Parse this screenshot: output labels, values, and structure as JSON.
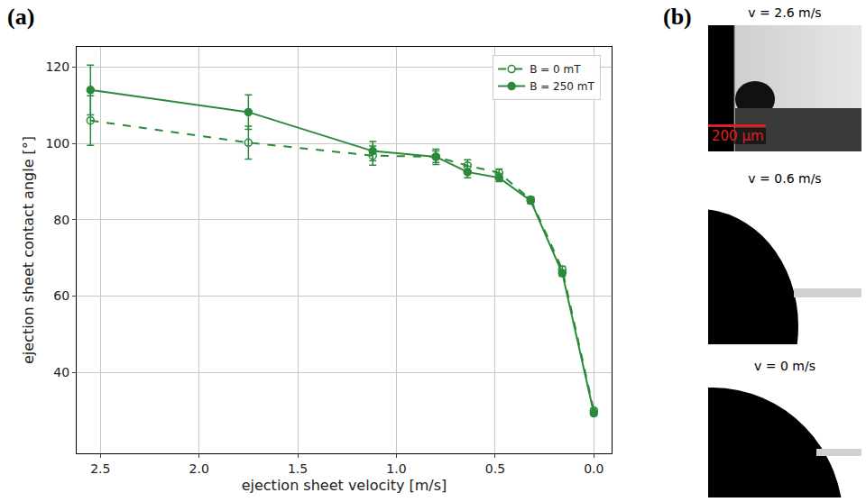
{
  "chart_data": {
    "type": "line",
    "x_label": "ejection sheet velocity [m/s]",
    "y_label": "ejection sheet contact angle [°]",
    "x": [
      2.55,
      1.75,
      1.12,
      0.8,
      0.64,
      0.48,
      0.32,
      0.16,
      0.0
    ],
    "series": [
      {
        "name": "B = 0 mT",
        "color": "#2a8a3a",
        "marker": "open-circle",
        "line_style": "dashed",
        "values": [
          106,
          100.2,
          96.8,
          96.5,
          94.2,
          92.3,
          85.3,
          67,
          30
        ],
        "error": [
          6.5,
          4.3,
          2.5,
          1.5,
          1.5,
          1,
          0.7,
          0.8,
          0.5
        ]
      },
      {
        "name": "B = 250 mT",
        "color": "#2a8a3a",
        "marker": "circle",
        "line_style": "solid",
        "values": [
          114,
          108.2,
          98,
          96.5,
          92.5,
          91,
          85,
          66,
          29.3
        ],
        "error": [
          6.5,
          4.5,
          2.5,
          2,
          1.5,
          1,
          0.8,
          0.8,
          0.5
        ]
      }
    ],
    "xlim": [
      2.62,
      -0.09
    ],
    "xticks": [
      2.5,
      {
        "value": 2,
        "label": "2.0"
      },
      1.5,
      {
        "value": 1,
        "label": "1.0"
      },
      0.5,
      {
        "value": 0,
        "label": "0.0"
      }
    ],
    "ylim": [
      18.8,
      125.3
    ],
    "yticks": [
      40,
      60,
      80,
      100,
      120
    ],
    "grid": true,
    "legend": "top-right"
  },
  "panel_labels": [
    "(a)",
    "(b)"
  ],
  "images": [
    {
      "label": "v = 2.6 m/s",
      "scale_bar": "200 µm"
    },
    {
      "label": "v = 0.6 m/s"
    },
    {
      "label": "v = 0 m/s"
    }
  ]
}
